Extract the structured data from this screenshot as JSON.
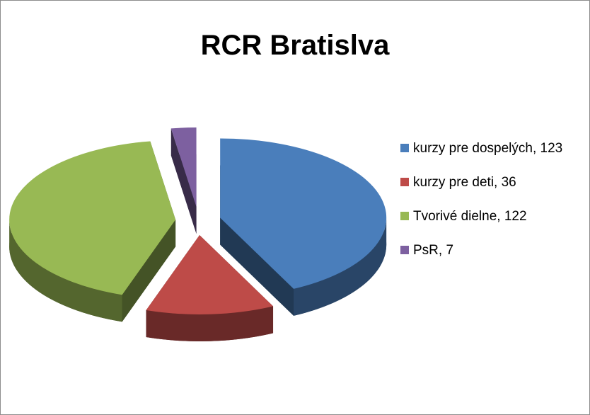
{
  "chart_data": {
    "type": "pie",
    "title": "RCR Bratislva",
    "categories": [
      "kurzy pre dospelých, 123",
      "kurzy pre deti, 36",
      "Tvorivé dielne, 122",
      "PsR, 7"
    ],
    "values": [
      123,
      36,
      122,
      7
    ],
    "colors": [
      "#4a7ebb",
      "#be4b48",
      "#98b954",
      "#7d60a0"
    ],
    "legend": "right"
  }
}
